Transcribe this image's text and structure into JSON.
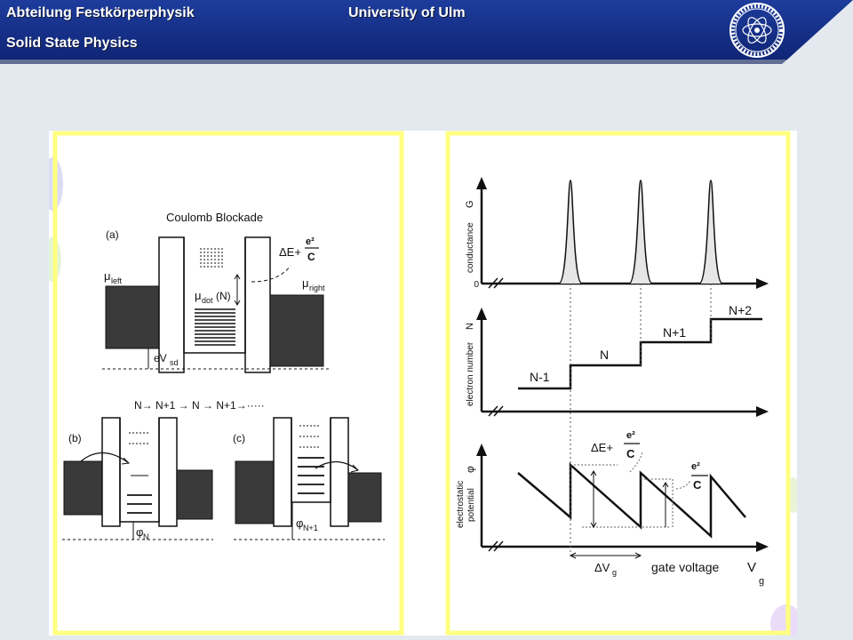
{
  "header": {
    "department": "Abteilung Festkörperphysik",
    "university": "University of Ulm",
    "subtitle": "Solid State Physics",
    "colors": {
      "bar": "#17318a",
      "text": "#ffffff",
      "slide_bg": "#e3e9ef",
      "frame": "#ffff80"
    }
  },
  "left_panel": {
    "title": "Coulomb Blockade",
    "label_a": "(a)",
    "label_b": "(b)",
    "label_c": "(c)",
    "mu_left": "μ",
    "mu_left_sub": "left",
    "mu_right": "μ",
    "mu_right_sub": "right",
    "mu_dot": "μ",
    "mu_dot_sub": "dot",
    "mu_dot_arg": "(N)",
    "delta_e": "ΔE+",
    "e2": "e²",
    "c": "C",
    "ev": "eV",
    "ev_sub": "sd",
    "sequence": "N→ N+1 → N → N+1→·····",
    "phi": "φ",
    "phi_n": "N",
    "phi_n1": "N+1"
  },
  "right_panel": {
    "conductance_label": "conductance",
    "conductance_symbol": "G",
    "zero_label": "0",
    "electron_number_label": "electron number",
    "electron_number_symbol": "N",
    "steps": [
      "N-1",
      "N",
      "N+1",
      "N+2"
    ],
    "potential_label_1": "electrostatic",
    "potential_label_2": "potential",
    "potential_symbol": "φ",
    "delta_e": "ΔE+",
    "e2": "e²",
    "c": "C",
    "delta_vg": "ΔV",
    "delta_vg_sub": "g",
    "gate_label": "gate voltage",
    "gate_symbol": "V",
    "gate_sub": "g"
  }
}
